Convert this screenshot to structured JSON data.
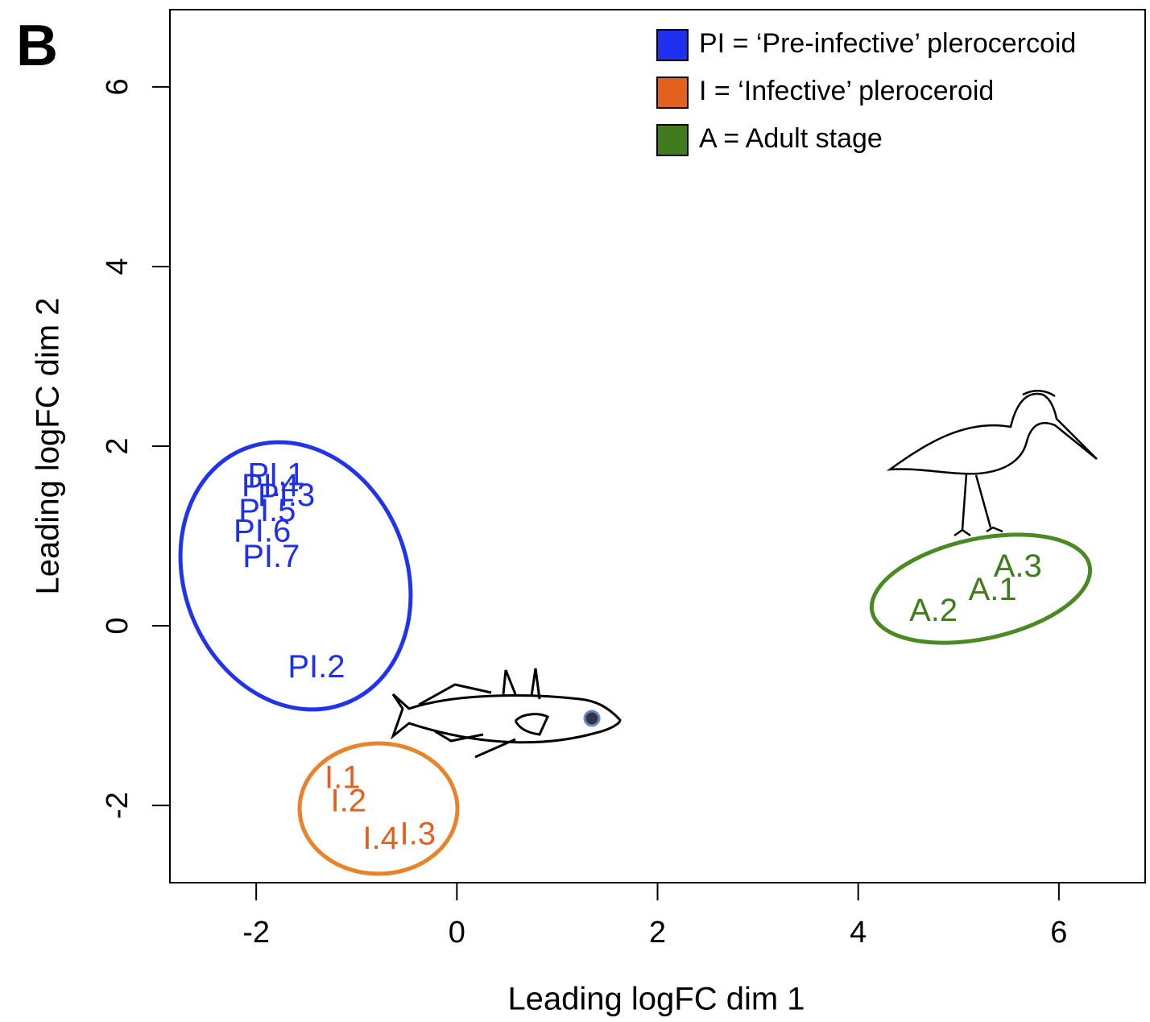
{
  "chart_data": {
    "type": "scatter",
    "panel_label": "B",
    "xlabel": "Leading logFC dim 1",
    "ylabel": "Leading logFC dim 2",
    "xlim": [
      -2.86,
      6.86
    ],
    "ylim": [
      -2.86,
      6.86
    ],
    "xticks": [
      -2,
      0,
      2,
      4,
      6
    ],
    "yticks": [
      -2,
      0,
      2,
      4,
      6
    ],
    "legend_position": "top-right",
    "series": [
      {
        "name": "PI = ‘Pre-infective’ plerocercoid",
        "color": "#1f2ff0",
        "labels": [
          "PI.1",
          "PI.4",
          "PI.3",
          "PI.5",
          "PI.6",
          "PI.7",
          "PI.2"
        ],
        "x": [
          -1.8,
          -1.86,
          -1.7,
          -1.89,
          -1.94,
          -1.85,
          -1.4
        ],
        "values": [
          1.66,
          1.54,
          1.43,
          1.26,
          1.03,
          0.75,
          -0.48
        ]
      },
      {
        "name": "I = ‘Infective’ pleroceroid",
        "color": "#e2611f",
        "labels": [
          "I.1",
          "I.2",
          "I.4",
          "I.3"
        ],
        "x": [
          -1.14,
          -1.08,
          -0.76,
          -0.39
        ],
        "values": [
          -1.71,
          -1.97,
          -2.39,
          -2.34
        ]
      },
      {
        "name": "A = Adult stage",
        "color": "#3f7d1c",
        "labels": [
          "A.2",
          "A.1",
          "A.3"
        ],
        "x": [
          4.75,
          5.34,
          5.59
        ],
        "values": [
          0.15,
          0.38,
          0.64
        ]
      }
    ]
  }
}
